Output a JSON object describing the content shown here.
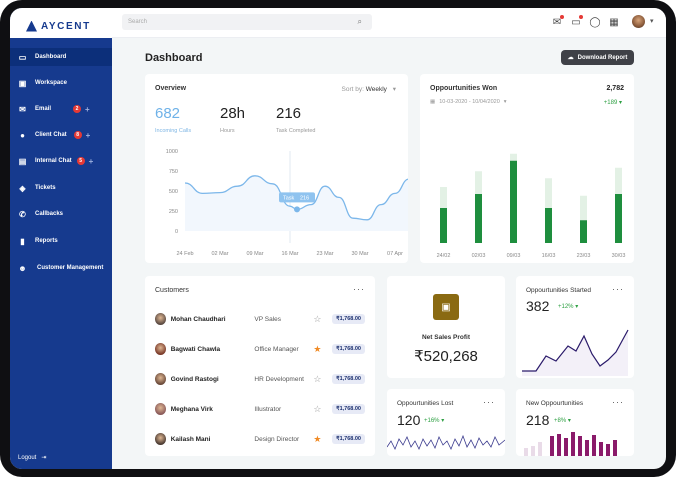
{
  "brand": {
    "name": "AYCENT"
  },
  "sidebar": {
    "items": [
      {
        "label": "Dashboard"
      },
      {
        "label": "Workspace"
      },
      {
        "label": "Email",
        "badge": "2"
      },
      {
        "label": "Client Chat",
        "badge": "8"
      },
      {
        "label": "Internal Chat",
        "badge": "5"
      },
      {
        "label": "Tickets"
      },
      {
        "label": "Callbacks"
      },
      {
        "label": "Reports"
      },
      {
        "label": "Customer Management"
      }
    ],
    "logout": "Logout"
  },
  "topbar": {
    "search_placeholder": "Search"
  },
  "page": {
    "title": "Dashboard",
    "download_label": "Download Report"
  },
  "overview": {
    "title": "Overview",
    "sort_label": "Sort by:",
    "sort_value": "Weekly",
    "stats": [
      {
        "value": "682",
        "label": "Incoming Calls"
      },
      {
        "value": "28h",
        "label": "Hours"
      },
      {
        "value": "216",
        "label": "Task Completed"
      }
    ],
    "tooltip": {
      "label": "Task",
      "value": "216"
    }
  },
  "opportunities_won": {
    "title": "Oppourtunities Won",
    "date_range": "10-03-2020 - 10/04/2020",
    "total": "2,782",
    "delta": "+189"
  },
  "customers": {
    "title": "Customers",
    "rows": [
      {
        "name": "Mohan Chaudhari",
        "role": "VP Sales",
        "amount": "₹1,768.00",
        "starred": false
      },
      {
        "name": "Bagwati Chawla",
        "role": "Office Manager",
        "amount": "₹1,768.00",
        "starred": true
      },
      {
        "name": "Govind Rastogi",
        "role": "HR Development",
        "amount": "₹1,768.00",
        "starred": false
      },
      {
        "name": "Meghana Virk",
        "role": "Illustrator",
        "amount": "₹1,768.00",
        "starred": false
      },
      {
        "name": "Kailash Mani",
        "role": "Design Director",
        "amount": "₹1,768.00",
        "starred": true
      }
    ]
  },
  "net_sales": {
    "title": "Net Sales Profit",
    "value": "₹520,268"
  },
  "opp_started": {
    "title": "Oppourtunities Started",
    "value": "382",
    "delta": "+12%"
  },
  "opp_lost": {
    "title": "Oppourtunities Lost",
    "value": "120",
    "delta": "+16%"
  },
  "new_opp": {
    "title": "New Oppourtunities",
    "value": "218",
    "delta": "+8%"
  },
  "colors": {
    "sidebar": "#163a8e",
    "accent_green": "#1e8e3e",
    "accent_purple": "#8a1a6a",
    "line_blue": "#7cb7ea"
  },
  "chart_data": [
    {
      "type": "line",
      "x": [
        "24 Feb",
        "02 Mar",
        "09 Mar",
        "16 Mar",
        "23 Mar",
        "30 Mar",
        "07 Apr"
      ],
      "y_ticks": [
        "1000",
        "750",
        "500",
        "250",
        "0"
      ],
      "ylim": [
        0,
        1000
      ],
      "points": [
        [
          0,
          600
        ],
        [
          0.5,
          470
        ],
        [
          1.0,
          480
        ],
        [
          1.5,
          560
        ],
        [
          2.0,
          690
        ],
        [
          2.5,
          590
        ],
        [
          3.0,
          310
        ],
        [
          3.2,
          270
        ],
        [
          3.6,
          330
        ],
        [
          4.0,
          560
        ],
        [
          4.4,
          420
        ],
        [
          4.8,
          160
        ],
        [
          5.2,
          140
        ],
        [
          5.6,
          330
        ],
        [
          6.0,
          470
        ],
        [
          6.4,
          650
        ],
        [
          6.9,
          800
        ]
      ]
    },
    {
      "type": "bar",
      "categories": [
        "24/02",
        "02/03",
        "09/03",
        "16/03",
        "23/03",
        "30/03"
      ],
      "values": [
        100,
        140,
        235,
        100,
        65,
        140
      ],
      "background": [
        160,
        205,
        255,
        185,
        135,
        215
      ]
    }
  ]
}
